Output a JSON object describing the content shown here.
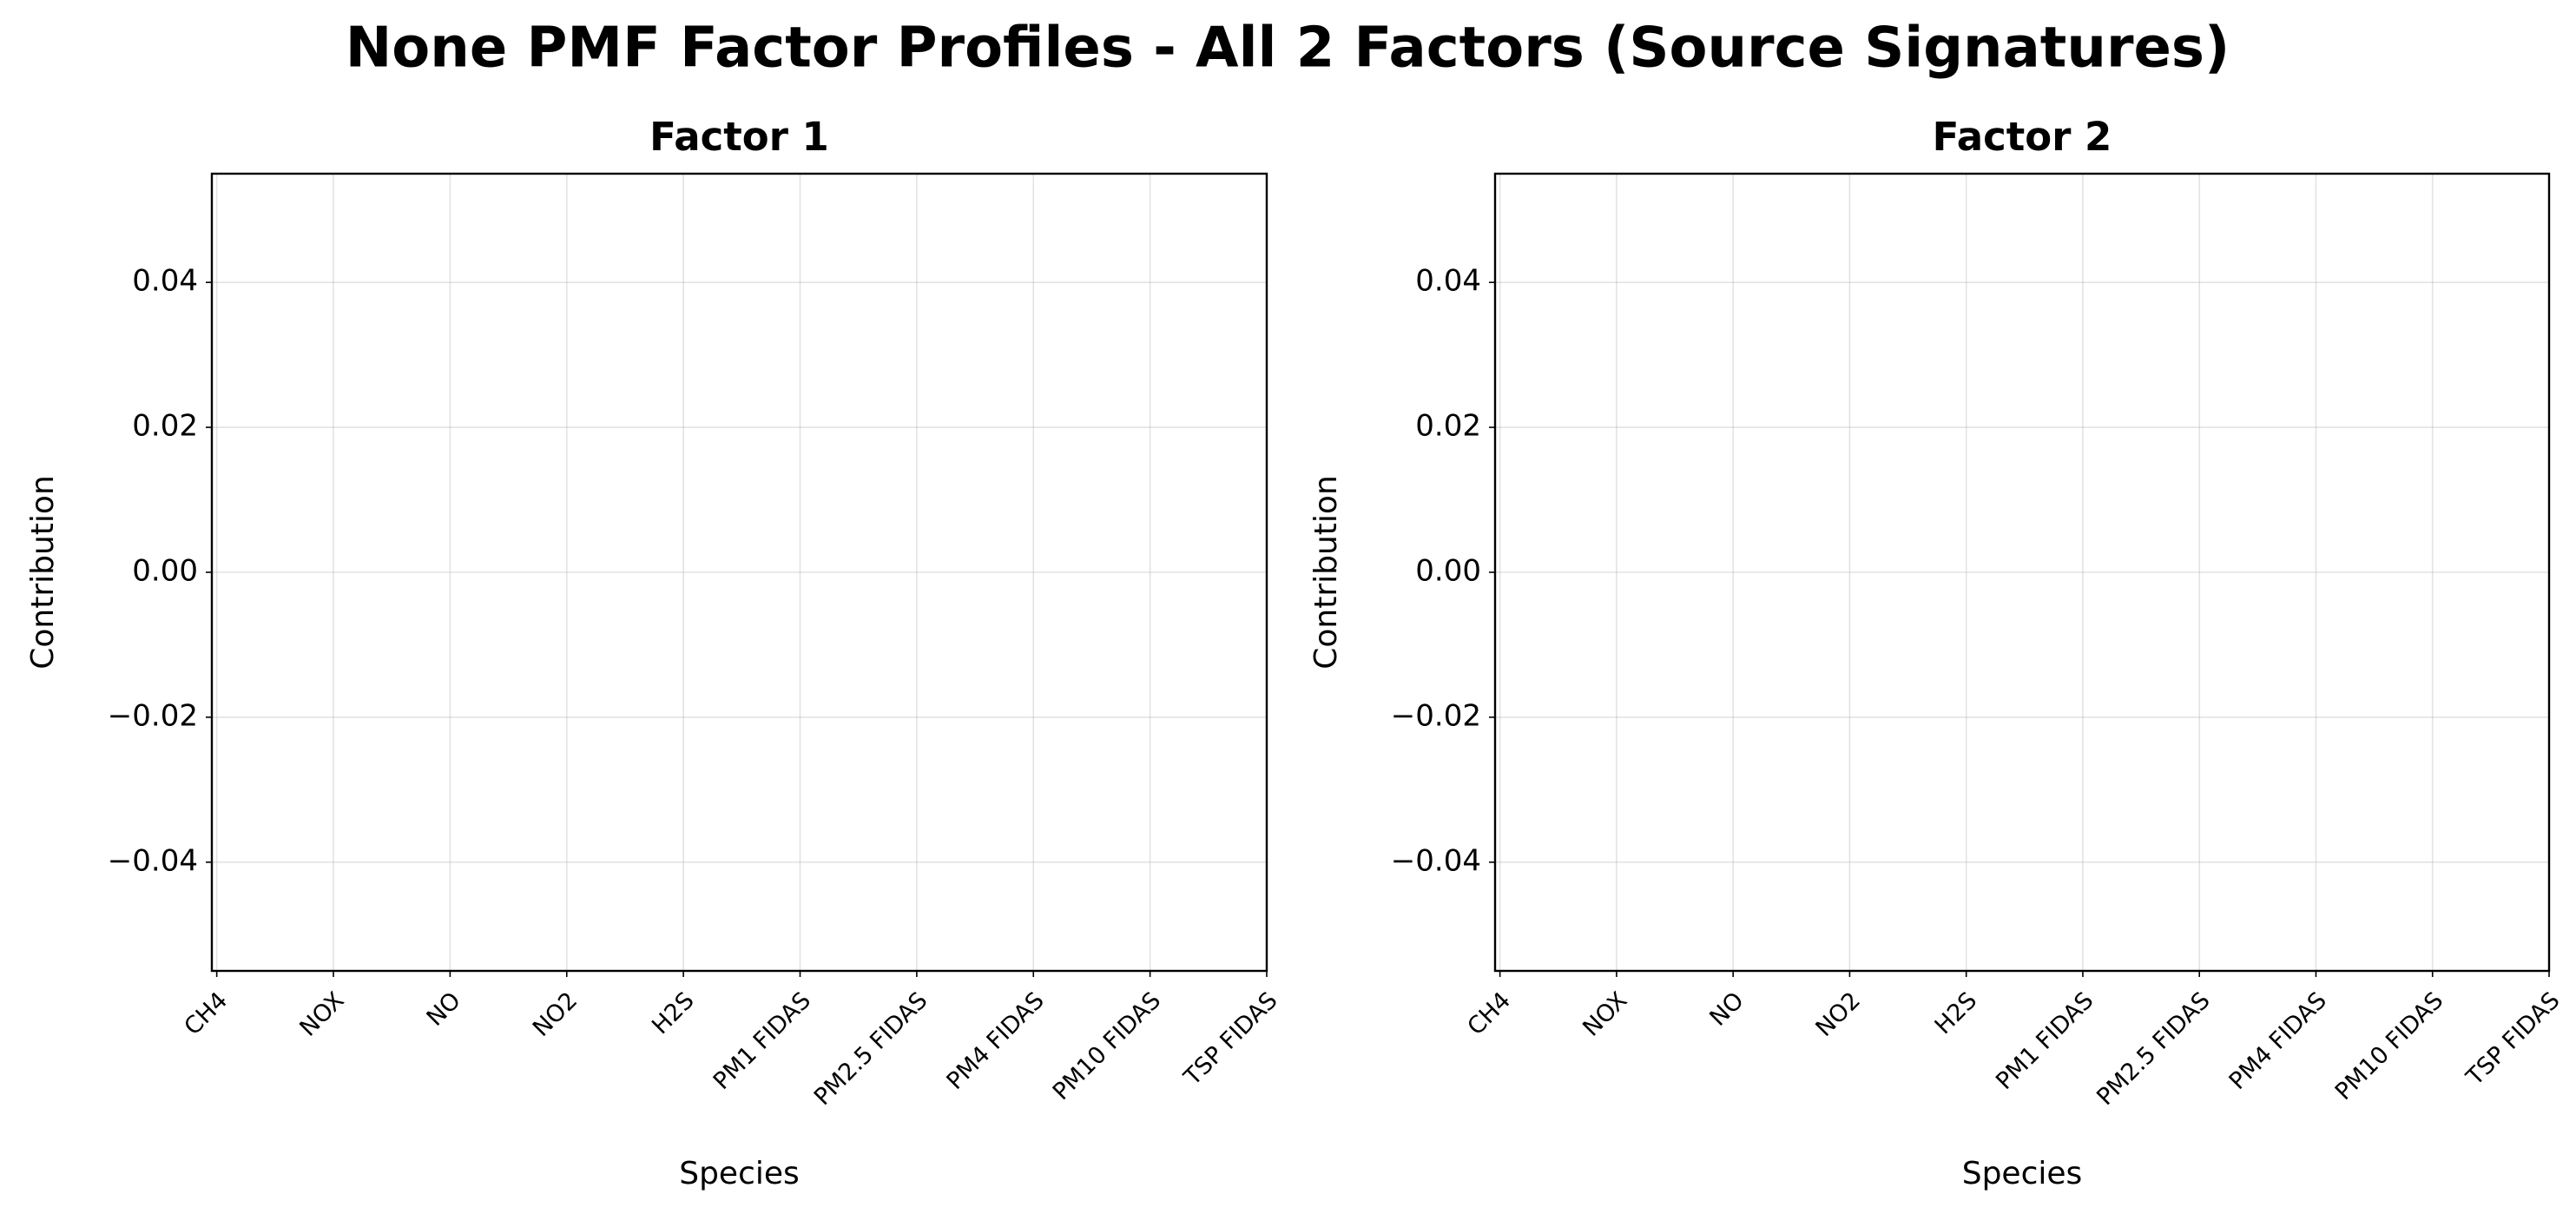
{
  "title": "None PMF Factor Profiles - All 2 Factors (Source Signatures)",
  "chart_data": [
    {
      "type": "bar",
      "title": "Factor 1",
      "xlabel": "Species",
      "ylabel": "Contribution",
      "categories": [
        "CH4",
        "NOX",
        "NO",
        "NO2",
        "H2S",
        "PM1 FIDAS",
        "PM2.5 FIDAS",
        "PM4 FIDAS",
        "PM10 FIDAS",
        "TSP FIDAS"
      ],
      "xlim": [
        -0.042,
        9
      ],
      "ylim": [
        -0.055,
        0.055
      ],
      "yticks": [
        {
          "value": -0.04,
          "label": "−0.04"
        },
        {
          "value": -0.02,
          "label": "−0.02"
        },
        {
          "value": 0,
          "label": "0.00"
        },
        0.02,
        0.04
      ],
      "grid": true
    },
    {
      "type": "bar",
      "title": "Factor 2",
      "xlabel": "Species",
      "ylabel": "Contribution",
      "categories": [
        "CH4",
        "NOX",
        "NO",
        "NO2",
        "H2S",
        "PM1 FIDAS",
        "PM2.5 FIDAS",
        "PM4 FIDAS",
        "PM10 FIDAS",
        "TSP FIDAS"
      ],
      "xlim": [
        -0.042,
        9
      ],
      "ylim": [
        -0.055,
        0.055
      ],
      "yticks": [
        {
          "value": -0.04,
          "label": "−0.04"
        },
        {
          "value": -0.02,
          "label": "−0.02"
        },
        {
          "value": 0,
          "label": "0.00"
        },
        0.02,
        0.04
      ],
      "grid": true
    }
  ]
}
